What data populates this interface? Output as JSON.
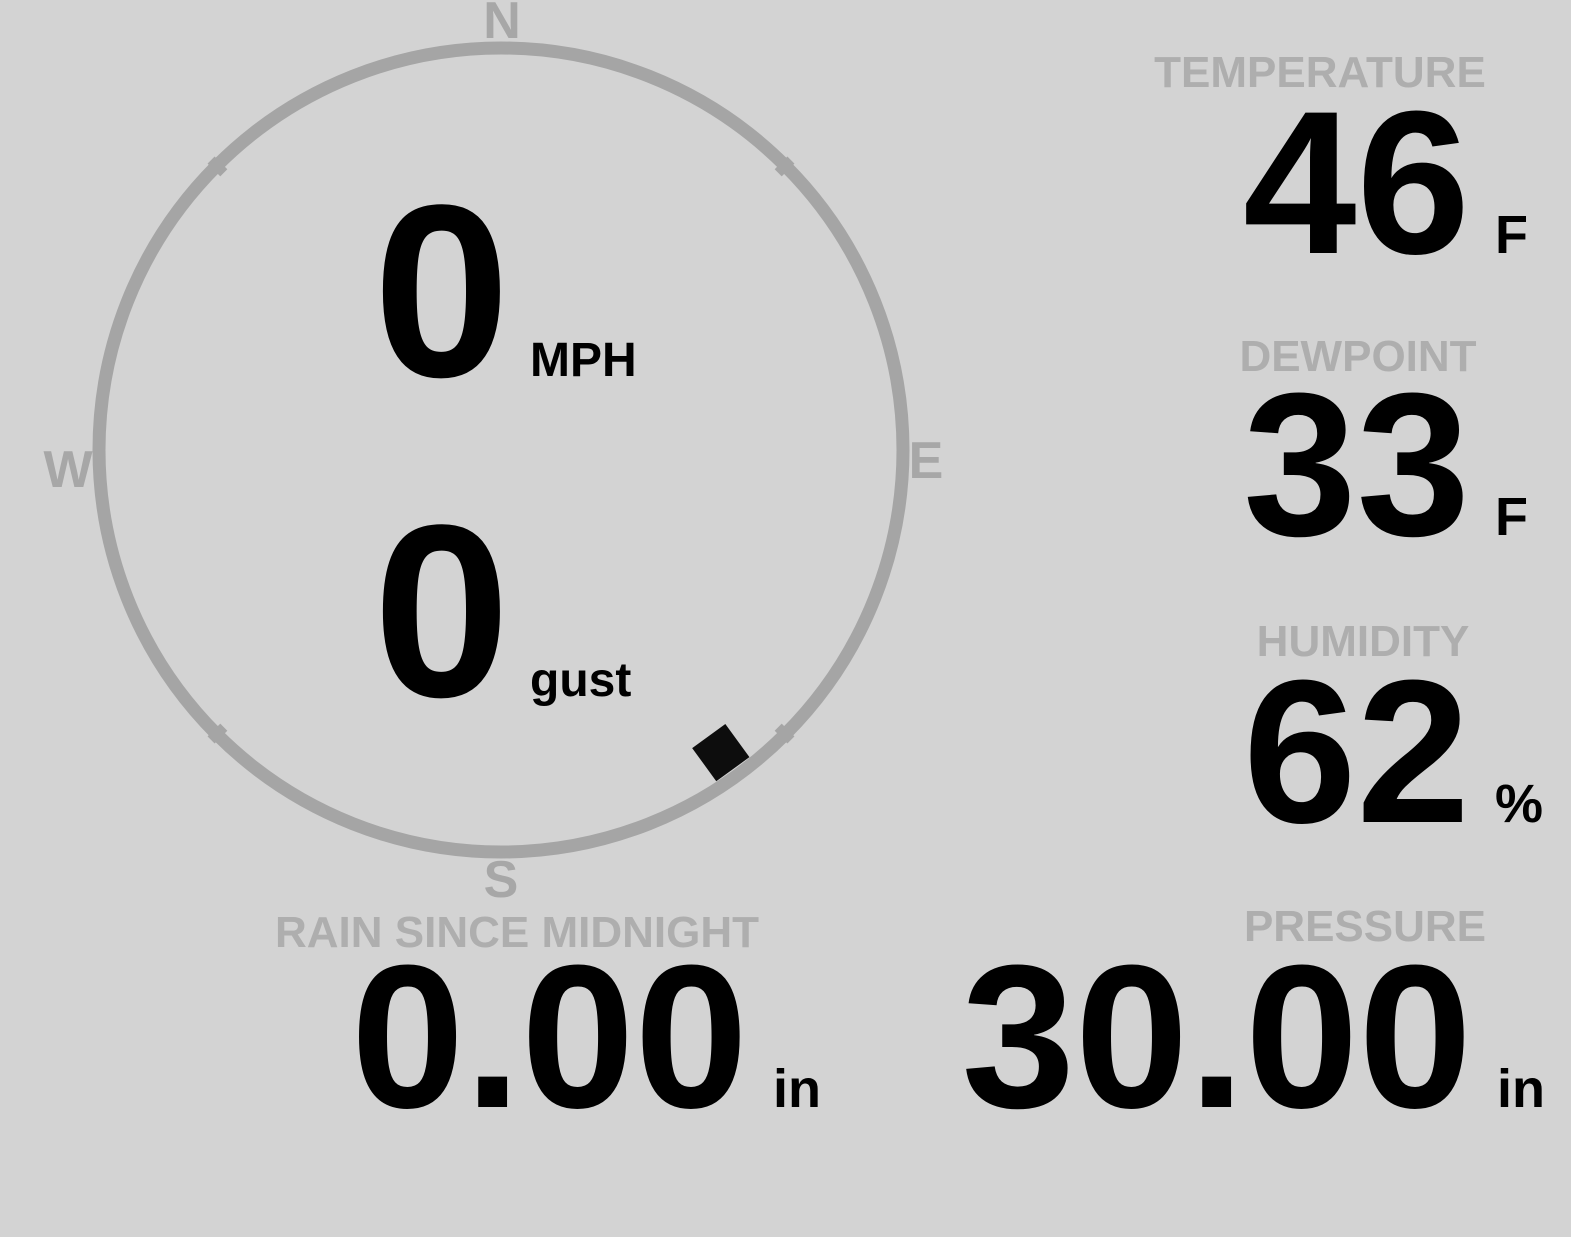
{
  "colors": {
    "background": "#d3d3d3",
    "label": "#aeaeae",
    "cardinal": "#a7a7a7",
    "compass_ring": "#a5a5a5",
    "value": "#000000",
    "marker": "#0d0d0d"
  },
  "wind": {
    "speed": "0",
    "speed_unit": "MPH",
    "gust": "0",
    "gust_unit": "gust",
    "direction_deg": 144,
    "cardinals": {
      "north": "N",
      "east": "E",
      "south": "S",
      "west": "W"
    }
  },
  "metrics": {
    "temperature": {
      "label": "TEMPERATURE",
      "value": "46",
      "unit": "F"
    },
    "dewpoint": {
      "label": "DEWPOINT",
      "value": "33",
      "unit": "F"
    },
    "humidity": {
      "label": "HUMIDITY",
      "value": "62",
      "unit": "%"
    },
    "rain": {
      "label": "RAIN SINCE MIDNIGHT",
      "value": "0.00",
      "unit": "in"
    },
    "pressure": {
      "label": "PRESSURE",
      "value": "30.00",
      "unit": "in"
    }
  }
}
